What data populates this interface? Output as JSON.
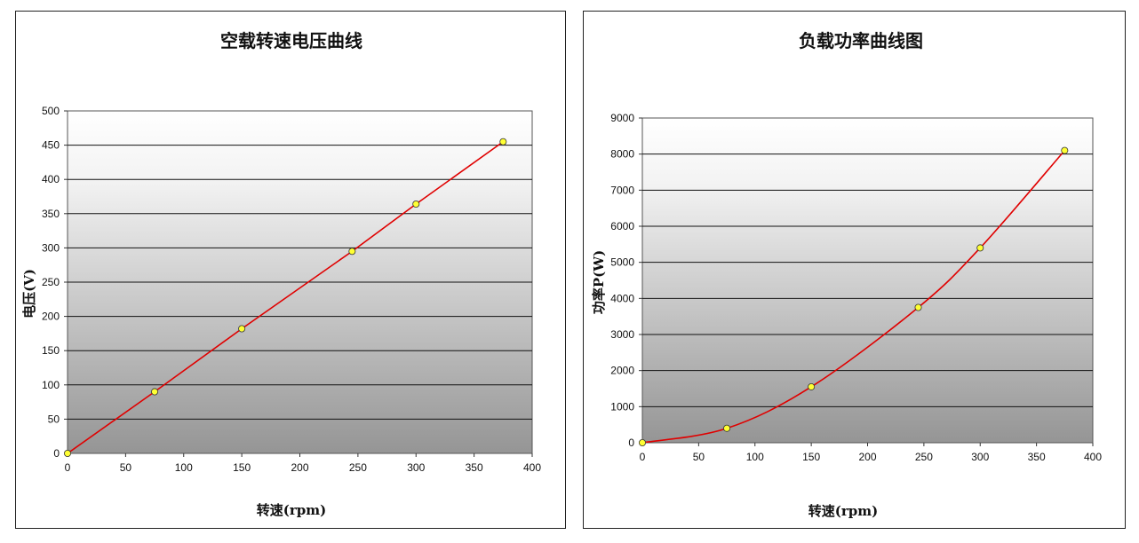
{
  "chart_data": [
    {
      "type": "line",
      "title": "空载转速电压曲线",
      "xlabel": "转速(rpm)",
      "ylabel": "电压(V)",
      "xlim": [
        0,
        400
      ],
      "ylim": [
        0,
        500
      ],
      "xticks": [
        "0",
        "50",
        "100",
        "150",
        "200",
        "250",
        "300",
        "350",
        "400"
      ],
      "yticks": [
        "0",
        "50",
        "100",
        "150",
        "200",
        "250",
        "300",
        "350",
        "400",
        "450",
        "500"
      ],
      "grid": "horizontal",
      "legend": "none",
      "series": [
        {
          "x": [
            0,
            75,
            150,
            245,
            300,
            375
          ],
          "y": [
            0,
            90,
            182,
            295,
            364,
            455
          ],
          "line_color": "#e00000",
          "marker_color": "#ffff33"
        }
      ]
    },
    {
      "type": "line",
      "title": "负载功率曲线图",
      "xlabel": "转速(rpm)",
      "ylabel": "功率P(W)",
      "xlim": [
        0,
        400
      ],
      "ylim": [
        0,
        9000
      ],
      "xticks": [
        "0",
        "50",
        "100",
        "150",
        "200",
        "250",
        "300",
        "350",
        "400"
      ],
      "yticks": [
        "0",
        "1000",
        "2000",
        "3000",
        "4000",
        "5000",
        "6000",
        "7000",
        "8000",
        "9000"
      ],
      "grid": "horizontal",
      "legend": "none",
      "series": [
        {
          "x": [
            0,
            75,
            150,
            245,
            300,
            375
          ],
          "y": [
            0,
            400,
            1550,
            3750,
            5400,
            8100
          ],
          "line_color": "#e00000",
          "marker_color": "#ffff33"
        }
      ]
    }
  ]
}
